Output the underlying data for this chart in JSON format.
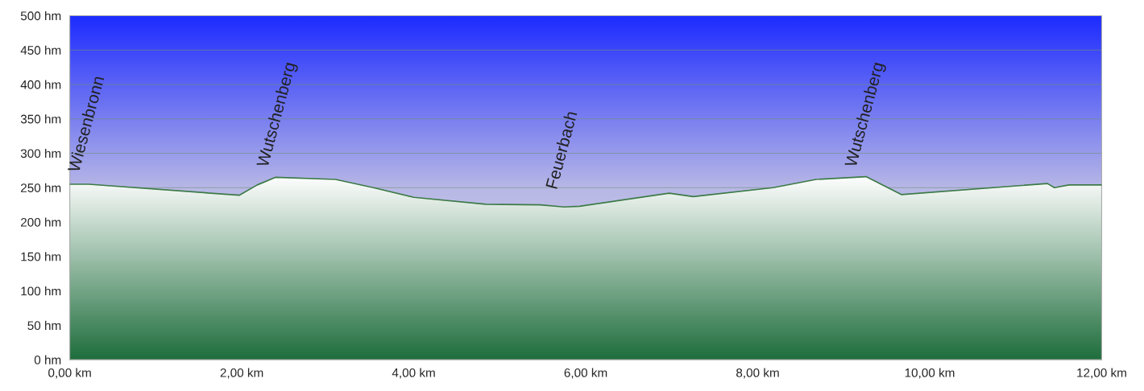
{
  "chart_data": {
    "type": "area",
    "x": [
      0,
      0.22,
      1.97,
      2.18,
      2.39,
      3.09,
      3.53,
      4.0,
      4.84,
      5.47,
      5.75,
      5.93,
      6.97,
      7.25,
      8.18,
      8.68,
      9.26,
      9.67,
      11.37,
      11.45,
      11.62,
      12.0
    ],
    "series": [
      {
        "color": "#3c7a46",
        "values": [
          255,
          255,
          239,
          254,
          265,
          262,
          250,
          236,
          226,
          225,
          222,
          223,
          242,
          237,
          250,
          262,
          266,
          240,
          256,
          250,
          254,
          254
        ]
      }
    ],
    "xlim": [
      0,
      12
    ],
    "ylim": [
      0,
      500
    ],
    "xticks": [
      {
        "value": 0,
        "label": "0,00 km"
      },
      {
        "value": 2,
        "label": "2,00 km"
      },
      {
        "value": 4,
        "label": "4,00 km"
      },
      {
        "value": 6,
        "label": "6,00 km"
      },
      {
        "value": 8,
        "label": "8,00 km"
      },
      {
        "value": 10,
        "label": "10,00 km"
      },
      {
        "value": 12,
        "label": "12,00 km"
      }
    ],
    "yticks": [
      {
        "value": 0,
        "label": "0 hm"
      },
      {
        "value": 50,
        "label": "50 hm"
      },
      {
        "value": 100,
        "label": "100 hm"
      },
      {
        "value": 150,
        "label": "150 hm"
      },
      {
        "value": 200,
        "label": "200 hm"
      },
      {
        "value": 250,
        "label": "250 hm"
      },
      {
        "value": 300,
        "label": "300 hm"
      },
      {
        "value": 350,
        "label": "350 hm"
      },
      {
        "value": 400,
        "label": "400 hm"
      },
      {
        "value": 450,
        "label": "450 hm"
      },
      {
        "value": 500,
        "label": "500 hm"
      }
    ],
    "grid": "y",
    "legend": false,
    "annotations": [
      "Wiesenbronn",
      "Wutschenberg",
      "Feuerbach",
      "Wutschenberg"
    ]
  }
}
